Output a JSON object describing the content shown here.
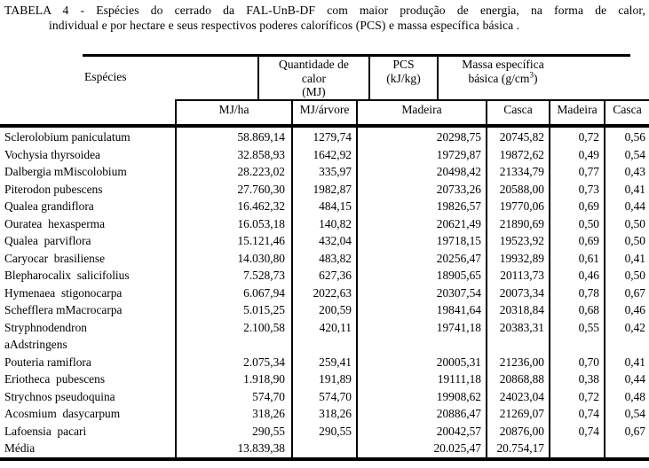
{
  "title": {
    "line1": "TABELA 4 - Espécies do cerrado da FAL-UnB-DF com maior produção de energia, na forma de calor,",
    "line2": "individual e por hectare e seus respectivos poderes caloríficos (PCS) e massa específica básica ."
  },
  "table": {
    "header": {
      "especies": "Espécies",
      "quantidade_l1": "Quantidade de",
      "quantidade_l2": "calor",
      "quantidade_l3": "(MJ)",
      "pcs_l1": "PCS",
      "pcs_l2": "(kJ/kg)",
      "massa_l1": "Massa específica",
      "massa_l2_pre": "básica (g/cm",
      "massa_l2_sup": "3",
      "massa_l2_post": ")"
    },
    "subheader": [
      "MJ/ha",
      "MJ/árvore",
      "Madeira",
      "Casca",
      "Madeira",
      "Casca"
    ],
    "rows": [
      {
        "species": "Sclerolobium paniculatum",
        "mj_ha": "58.869,14",
        "mj_arvore": "1279,74",
        "pcs_madeira": "20298,75",
        "pcs_casca": "20745,82",
        "me_madeira": "0,72",
        "me_casca": "0,56"
      },
      {
        "species": "Vochysia thyrsoidea",
        "mj_ha": "32.858,93",
        "mj_arvore": "1642,92",
        "pcs_madeira": "19729,87",
        "pcs_casca": "19872,62",
        "me_madeira": "0,49",
        "me_casca": "0,54"
      },
      {
        "species": "Dalbergia mMiscolobium",
        "mj_ha": "28.223,02",
        "mj_arvore": "335,97",
        "pcs_madeira": "20498,42",
        "pcs_casca": "21334,79",
        "me_madeira": "0,77",
        "me_casca": "0,43"
      },
      {
        "species": "Piterodon pubescens",
        "mj_ha": "27.760,30",
        "mj_arvore": "1982,87",
        "pcs_madeira": "20733,26",
        "pcs_casca": "20588,00",
        "me_madeira": "0,73",
        "me_casca": "0,41"
      },
      {
        "species": "Qualea grandiflora",
        "mj_ha": "16.462,32",
        "mj_arvore": "484,15",
        "pcs_madeira": "19826,57",
        "pcs_casca": "19770,06",
        "me_madeira": "0,69",
        "me_casca": "0,44"
      },
      {
        "species": "Ouratea  hexasperma",
        "mj_ha": "16.053,18",
        "mj_arvore": "140,82",
        "pcs_madeira": "20621,49",
        "pcs_casca": "21890,69",
        "me_madeira": "0,50",
        "me_casca": "0,50"
      },
      {
        "species": "Qualea  parviflora",
        "mj_ha": "15.121,46",
        "mj_arvore": "432,04",
        "pcs_madeira": "19718,15",
        "pcs_casca": "19523,92",
        "me_madeira": "0,69",
        "me_casca": "0,50"
      },
      {
        "species": "Caryocar  brasiliense",
        "mj_ha": "14.030,80",
        "mj_arvore": "483,82",
        "pcs_madeira": "20256,47",
        "pcs_casca": "19932,89",
        "me_madeira": "0,61",
        "me_casca": "0,41"
      },
      {
        "species": "Blepharocalix  salicifolius",
        "mj_ha": "7.528,73",
        "mj_arvore": "627,36",
        "pcs_madeira": "18905,65",
        "pcs_casca": "20113,73",
        "me_madeira": "0,46",
        "me_casca": "0,50"
      },
      {
        "species": "Hymenaea  stigonocarpa",
        "mj_ha": "6.067,94",
        "mj_arvore": "2022,63",
        "pcs_madeira": "20307,54",
        "pcs_casca": "20073,34",
        "me_madeira": "0,78",
        "me_casca": "0,67"
      },
      {
        "species": "Schefflera mMacrocarpa",
        "mj_ha": "5.015,25",
        "mj_arvore": "200,59",
        "pcs_madeira": "19841,64",
        "pcs_casca": "20318,84",
        "me_madeira": "0,68",
        "me_casca": "0,46"
      },
      {
        "species": "Stryphnodendron\naAdstringens",
        "mj_ha": "2.100,58",
        "mj_arvore": "420,11",
        "pcs_madeira": "19741,18",
        "pcs_casca": "20383,31",
        "me_madeira": "0,55",
        "me_casca": "0,42"
      },
      {
        "species": "Pouteria ramiflora",
        "mj_ha": "2.075,34",
        "mj_arvore": "259,41",
        "pcs_madeira": "20005,31",
        "pcs_casca": "21236,00",
        "me_madeira": "0,70",
        "me_casca": "0,41"
      },
      {
        "species": "Eriotheca  pubescens",
        "mj_ha": "1.918,90",
        "mj_arvore": "191,89",
        "pcs_madeira": "19111,18",
        "pcs_casca": "20868,88",
        "me_madeira": "0,38",
        "me_casca": "0,44"
      },
      {
        "species": "Strychnos pseudoquina",
        "mj_ha": "574,70",
        "mj_arvore": "574,70",
        "pcs_madeira": "19908,62",
        "pcs_casca": "24023,04",
        "me_madeira": "0,72",
        "me_casca": "0,48"
      },
      {
        "species": "Acosmium  dasycarpum",
        "mj_ha": "318,26",
        "mj_arvore": "318,26",
        "pcs_madeira": "20886,47",
        "pcs_casca": "21269,07",
        "me_madeira": "0,74",
        "me_casca": "0,54"
      },
      {
        "species": "Lafoensia  pacari",
        "mj_ha": "290,55",
        "mj_arvore": "290,55",
        "pcs_madeira": "20042,57",
        "pcs_casca": "20876,00",
        "me_madeira": "0,74",
        "me_casca": "0,67"
      },
      {
        "species": "Média",
        "mj_ha": "13.839,38",
        "mj_arvore": "",
        "pcs_madeira": "20.025,47",
        "pcs_casca": "20.754,17",
        "me_madeira": "",
        "me_casca": ""
      }
    ]
  }
}
